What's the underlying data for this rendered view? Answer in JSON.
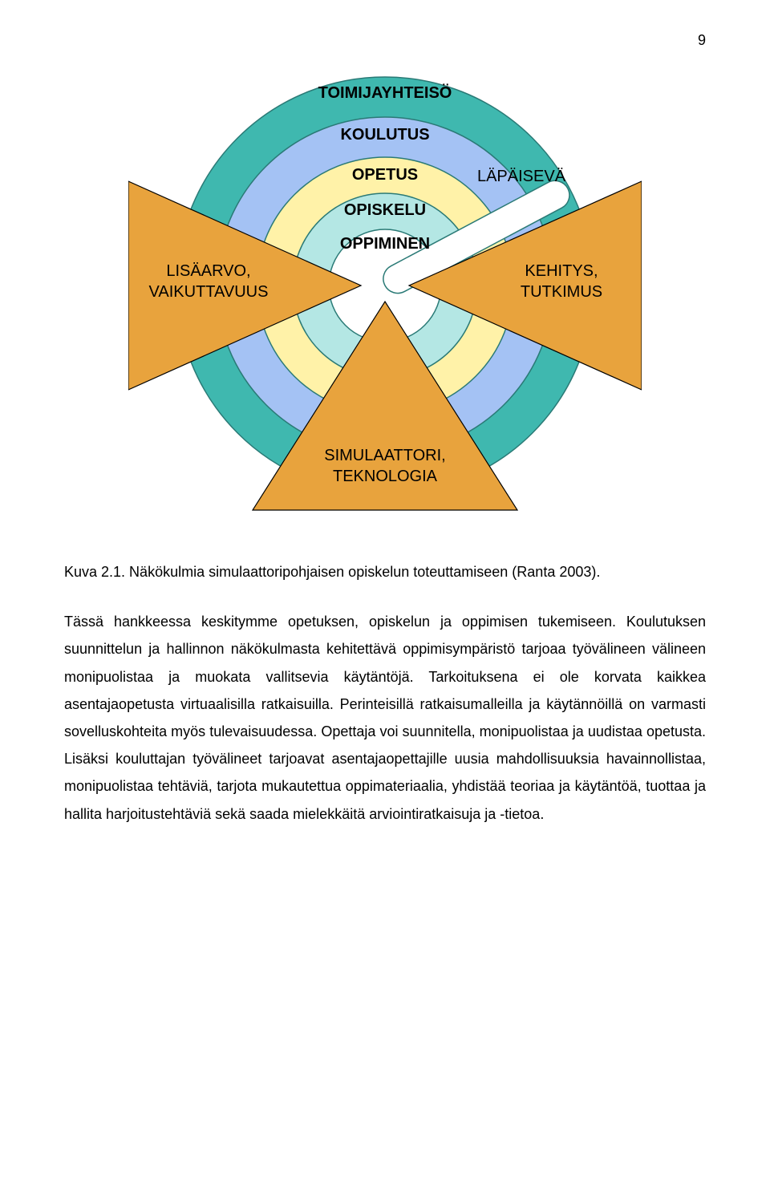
{
  "page_number": "9",
  "diagram": {
    "rings": [
      {
        "label": "TOIMIJAYHTEISÖ",
        "fill": "#3fb8af",
        "r": 260
      },
      {
        "label": "KOULUTUS",
        "fill": "#a4c2f4",
        "r": 210
      },
      {
        "label": "OPETUS",
        "fill": "#fff2a8",
        "r": 160
      },
      {
        "label": "OPISKELU",
        "fill": "#b4e7e4",
        "r": 115
      },
      {
        "label": "OPPIMINEN",
        "fill": "#ffffff",
        "r": 70
      }
    ],
    "ring_label_fontsize": 20,
    "ring_label_weight": "bold",
    "ring_stroke": "#2a7a76",
    "triangles": {
      "fill": "#e8a33d",
      "stroke": "#000000",
      "left": {
        "lines": [
          "LISÄARVO,",
          "VAIKUTTAVUUS"
        ]
      },
      "right": {
        "lines": [
          "KEHITYS,",
          "TUTKIMUS"
        ]
      },
      "bottom": {
        "lines": [
          "SIMULAATTORI,",
          "TEKNOLOGIA"
        ]
      },
      "label_fontsize": 20
    },
    "wedge": {
      "label": "LÄPÄISEVÄ",
      "fill": "#ffffff",
      "stroke": "#2a7a76",
      "label_fontsize": 20
    },
    "background": "#ffffff"
  },
  "caption": "Kuva 2.1. Näkökulmia simulaattoripohjaisen opiskelun toteuttamiseen (Ranta 2003).",
  "body": "Tässä hankkeessa keskitymme opetuksen, opiskelun ja oppimisen tukemiseen. Koulutuksen suunnittelun ja hallinnon näkökulmasta kehitettävä oppimisympäristö tarjoaa työvälineen välineen monipuolistaa ja muokata vallitsevia käytäntöjä. Tarkoituksena ei ole korvata kaikkea asentajaopetusta virtuaalisilla ratkaisuilla. Perinteisillä ratkaisumalleilla ja käytännöillä on varmasti sovelluskohteita myös tulevaisuudessa. Opettaja voi suunnitella, monipuolistaa ja uudistaa opetusta. Lisäksi kouluttajan työvälineet tarjoavat asentajaopettajille uusia mahdollisuuksia havainnollistaa, monipuolistaa tehtäviä, tarjota mukautettua oppimateriaalia, yhdistää teoriaa ja käytäntöä, tuottaa ja hallita harjoitustehtäviä sekä saada mielekkäitä arviointiratkaisuja ja -tietoa."
}
